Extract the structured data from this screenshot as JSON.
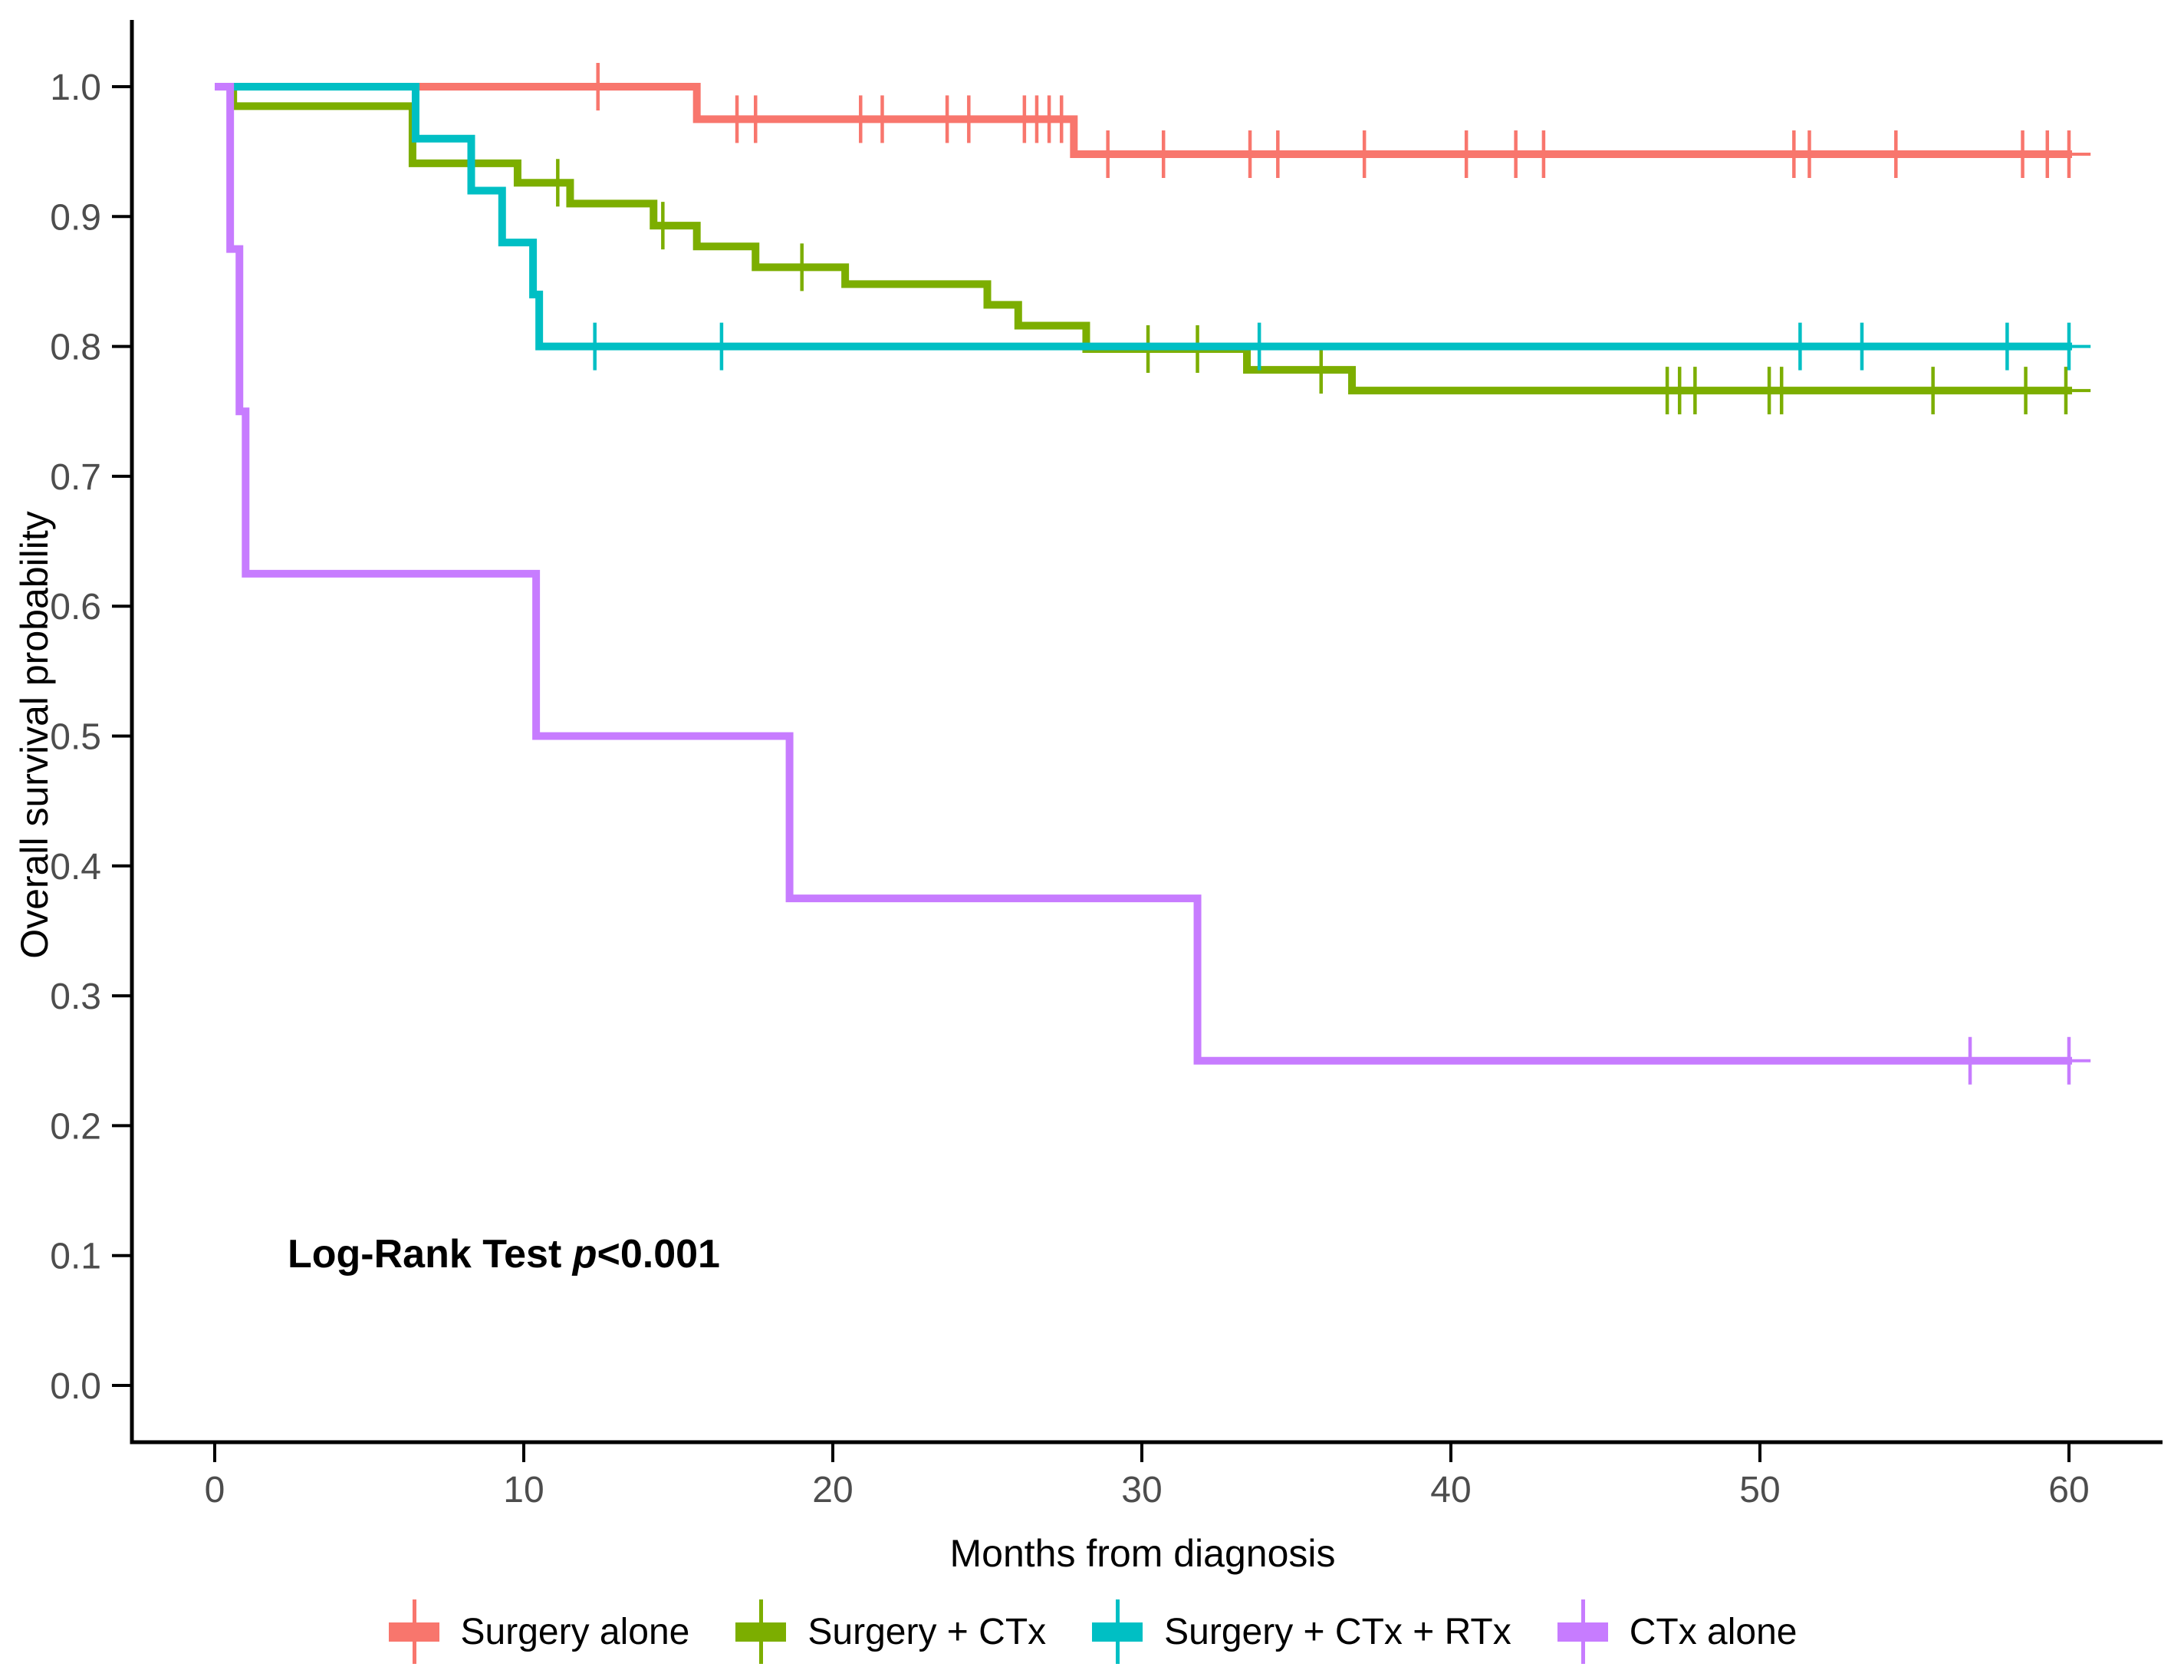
{
  "figure": {
    "y_axis": {
      "label": "Overall survival probability",
      "ticks": [
        "1.0",
        "0.9",
        "0.8",
        "0.7",
        "0.6",
        "0.5",
        "0.4",
        "0.3",
        "0.2",
        "0.1",
        "0.0"
      ],
      "tick_values": [
        1.0,
        0.9,
        0.8,
        0.7,
        0.6,
        0.5,
        0.4,
        0.3,
        0.2,
        0.1,
        0.0
      ],
      "range": [
        0.0,
        1.0
      ]
    },
    "x_axis": {
      "label": "Months from diagnosis",
      "ticks": [
        "0",
        "10",
        "20",
        "30",
        "40",
        "50",
        "60"
      ],
      "tick_values": [
        0,
        10,
        20,
        30,
        40,
        50,
        60
      ],
      "range": [
        0,
        60
      ]
    },
    "annotation": {
      "prefix": "Log-Rank Test ",
      "p_symbol": "p",
      "suffix": "<0.001"
    },
    "colors": {
      "axis_line": "#000000",
      "tick_text": "#4d4d4d",
      "title_text": "#000000"
    }
  },
  "chart_data": {
    "type": "line",
    "subtype": "kaplan-meier-step",
    "title": "",
    "xlabel": "Months from diagnosis",
    "ylabel": "Overall survival probability",
    "xlim": [
      0,
      63
    ],
    "ylim": [
      0.0,
      1.0
    ],
    "grid": false,
    "legend_position": "bottom",
    "annotation_text": "Log-Rank Test p<0.001",
    "series": [
      {
        "name": "Surgery alone",
        "color": "#F8766D",
        "start": [
          0,
          1.0
        ],
        "steps": [
          [
            15.6,
            0.975
          ],
          [
            27.8,
            0.948
          ]
        ],
        "end_time": 60.1,
        "tail_end_time": 60.7,
        "censors": [
          [
            12.4,
            1.0
          ],
          [
            16.9,
            0.975
          ],
          [
            17.5,
            0.975
          ],
          [
            20.9,
            0.975
          ],
          [
            21.6,
            0.975
          ],
          [
            23.7,
            0.975
          ],
          [
            24.4,
            0.975
          ],
          [
            26.2,
            0.975
          ],
          [
            26.6,
            0.975
          ],
          [
            27.0,
            0.975
          ],
          [
            27.4,
            0.975
          ],
          [
            28.9,
            0.948
          ],
          [
            30.7,
            0.948
          ],
          [
            33.5,
            0.948
          ],
          [
            34.4,
            0.948
          ],
          [
            37.2,
            0.948
          ],
          [
            40.5,
            0.948
          ],
          [
            42.1,
            0.948
          ],
          [
            43.0,
            0.948
          ],
          [
            51.1,
            0.948
          ],
          [
            51.6,
            0.948
          ],
          [
            54.4,
            0.948
          ],
          [
            58.5,
            0.948
          ],
          [
            59.3,
            0.948
          ],
          [
            60.0,
            0.948
          ]
        ]
      },
      {
        "name": "Surgery + CTx",
        "color": "#7CAE00",
        "start": [
          0,
          1.0
        ],
        "steps": [
          [
            0.6,
            0.985
          ],
          [
            6.4,
            0.941
          ],
          [
            9.8,
            0.926
          ],
          [
            11.5,
            0.91
          ],
          [
            14.2,
            0.893
          ],
          [
            15.6,
            0.877
          ],
          [
            17.5,
            0.861
          ],
          [
            20.4,
            0.848
          ],
          [
            25.0,
            0.832
          ],
          [
            26.0,
            0.816
          ],
          [
            28.2,
            0.798
          ],
          [
            33.4,
            0.782
          ],
          [
            36.8,
            0.766
          ]
        ],
        "end_time": 60.1,
        "tail_end_time": 60.7,
        "censors": [
          [
            11.1,
            0.926
          ],
          [
            14.5,
            0.893
          ],
          [
            19.0,
            0.861
          ],
          [
            30.2,
            0.798
          ],
          [
            31.8,
            0.798
          ],
          [
            35.8,
            0.782
          ],
          [
            47.0,
            0.766
          ],
          [
            47.4,
            0.766
          ],
          [
            47.9,
            0.766
          ],
          [
            50.3,
            0.766
          ],
          [
            50.7,
            0.766
          ],
          [
            55.6,
            0.766
          ],
          [
            58.6,
            0.766
          ],
          [
            59.9,
            0.766
          ]
        ]
      },
      {
        "name": "Surgery + CTx + RTx",
        "color": "#00BFC4",
        "start": [
          0,
          1.0
        ],
        "steps": [
          [
            6.5,
            0.96
          ],
          [
            8.3,
            0.92
          ],
          [
            9.3,
            0.88
          ],
          [
            10.3,
            0.84
          ],
          [
            10.5,
            0.8
          ]
        ],
        "end_time": 60.1,
        "tail_end_time": 60.7,
        "censors": [
          [
            12.3,
            0.8
          ],
          [
            16.4,
            0.8
          ],
          [
            33.8,
            0.8
          ],
          [
            51.3,
            0.8
          ],
          [
            53.3,
            0.8
          ],
          [
            58.0,
            0.8
          ],
          [
            60.0,
            0.8
          ]
        ]
      },
      {
        "name": "CTx alone",
        "color": "#C77CFF",
        "start": [
          0,
          1.0
        ],
        "steps": [
          [
            0.5,
            0.875
          ],
          [
            0.8,
            0.75
          ],
          [
            1.0,
            0.625
          ],
          [
            10.4,
            0.5
          ],
          [
            18.6,
            0.375
          ],
          [
            31.8,
            0.25
          ]
        ],
        "end_time": 60.1,
        "tail_end_time": 60.7,
        "censors": [
          [
            56.8,
            0.25
          ],
          [
            60.0,
            0.25
          ]
        ]
      }
    ]
  }
}
